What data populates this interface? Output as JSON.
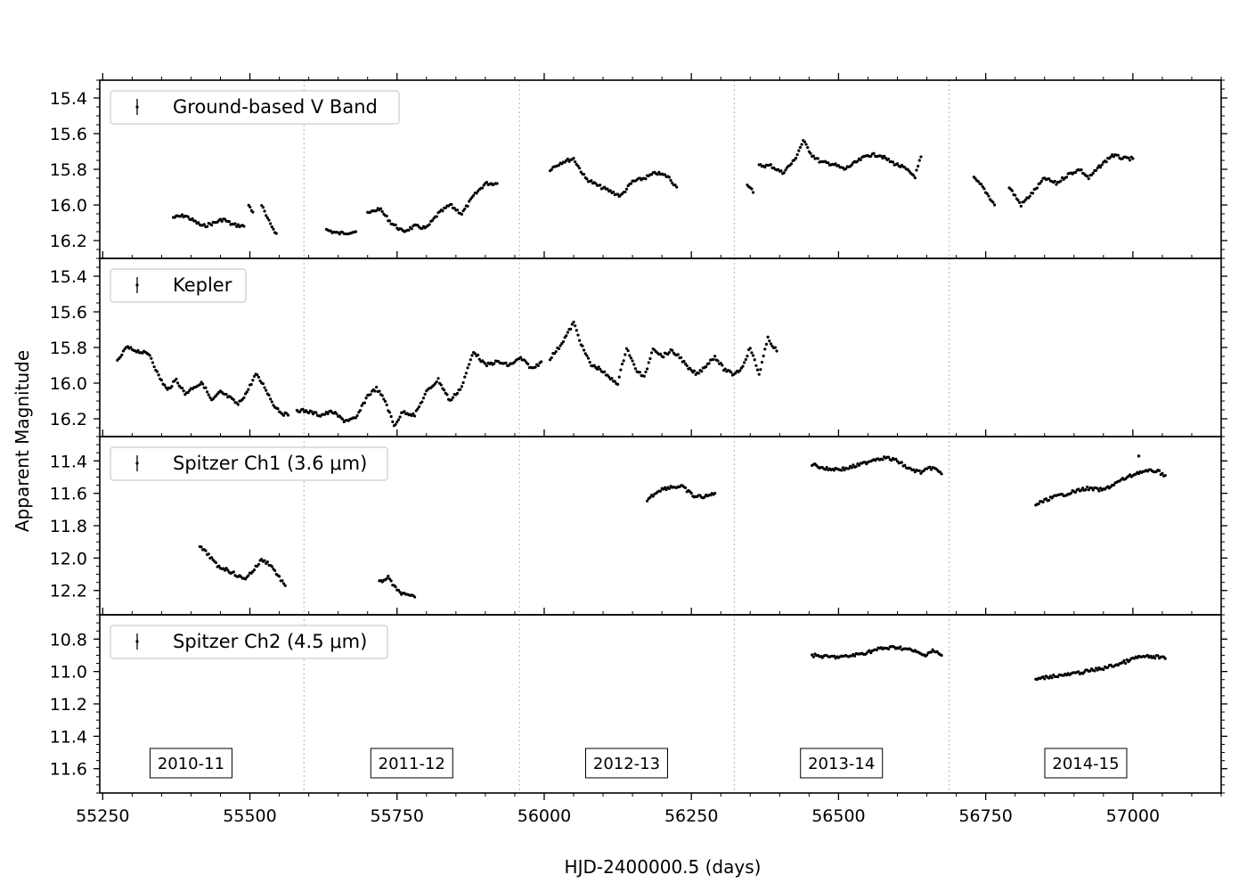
{
  "chart_data": {
    "type": "scatter",
    "xlabel": "HJD-2400000.5 (days)",
    "ylabel": "Apparent Magnitude",
    "xlim": [
      55245,
      57150
    ],
    "x_ticks": [
      55250,
      55500,
      55750,
      56000,
      56250,
      56500,
      56750,
      57000
    ],
    "season_boundaries": [
      55592,
      55958,
      56323,
      56688
    ],
    "seasons": [
      {
        "label": "2010-11",
        "x": 55400
      },
      {
        "label": "2011-12",
        "x": 55775
      },
      {
        "label": "2012-13",
        "x": 56140
      },
      {
        "label": "2013-14",
        "x": 56505
      },
      {
        "label": "2014-15",
        "x": 56920
      }
    ],
    "panels": [
      {
        "legend": "Ground-based V Band",
        "ylim": [
          16.3,
          15.3
        ],
        "y_ticks": [
          15.4,
          15.6,
          15.8,
          16.0,
          16.2
        ],
        "y_tick_labels": [
          "15.4",
          "15.6",
          "15.8",
          "16.0",
          "16.2"
        ],
        "segments": [
          {
            "x": [
              55370,
              55390,
              55400,
              55420,
              55440,
              55455,
              55470,
              55490
            ],
            "y": [
              16.07,
              16.06,
              16.08,
              16.12,
              16.1,
              16.08,
              16.11,
              16.12
            ]
          },
          {
            "x": [
              55498,
              55505
            ],
            "y": [
              16.0,
              16.04
            ]
          },
          {
            "x": [
              55520,
              55530,
              55545
            ],
            "y": [
              16.0,
              16.08,
              16.16
            ]
          },
          {
            "x": [
              55630,
              55650,
              55680
            ],
            "y": [
              16.14,
              16.16,
              16.15
            ]
          },
          {
            "x": [
              55700,
              55720,
              55740,
              55760,
              55780,
              55800,
              55820,
              55840,
              55860,
              55880,
              55900,
              55920
            ],
            "y": [
              16.05,
              16.02,
              16.1,
              16.15,
              16.12,
              16.13,
              16.05,
              16.0,
              16.05,
              15.95,
              15.88,
              15.88
            ]
          },
          {
            "x": [
              56010,
              56030,
              56050,
              56070,
              56090,
              56110,
              56130,
              56150,
              56170,
              56190,
              56210,
              56225
            ],
            "y": [
              15.8,
              15.76,
              15.74,
              15.85,
              15.89,
              15.92,
              15.95,
              15.87,
              15.85,
              15.82,
              15.84,
              15.9
            ]
          },
          {
            "x": [
              56345,
              56355
            ],
            "y": [
              15.88,
              15.93
            ]
          },
          {
            "x": [
              56365,
              56385,
              56405,
              56425,
              56440,
              56455,
              56470,
              56490,
              56510,
              56530,
              56550,
              56570,
              56590,
              56610,
              56630,
              56640
            ],
            "y": [
              15.78,
              15.78,
              15.82,
              15.75,
              15.64,
              15.72,
              15.76,
              15.77,
              15.8,
              15.76,
              15.72,
              15.72,
              15.76,
              15.79,
              15.84,
              15.73
            ]
          },
          {
            "x": [
              56730,
              56745,
              56765
            ],
            "y": [
              15.85,
              15.9,
              16.0
            ]
          },
          {
            "x": [
              56790,
              56810,
              56830,
              56850,
              56870,
              56890,
              56910,
              56925,
              56945,
              56965,
              56985,
              57000
            ],
            "y": [
              15.9,
              16.0,
              15.93,
              15.85,
              15.88,
              15.83,
              15.8,
              15.85,
              15.78,
              15.72,
              15.74,
              15.74
            ]
          }
        ]
      },
      {
        "legend": "Kepler",
        "ylim": [
          16.3,
          15.3
        ],
        "y_ticks": [
          15.4,
          15.6,
          15.8,
          16.0,
          16.2
        ],
        "y_tick_labels": [
          "15.4",
          "15.6",
          "15.8",
          "16.0",
          "16.2"
        ],
        "segments": [
          {
            "x": [
              55275,
              55290,
              55310,
              55330,
              55345,
              55360,
              55375,
              55390,
              55405,
              55420,
              55435,
              55450,
              55465,
              55480,
              55495,
              55510,
              55525,
              55540,
              55555,
              55565
            ],
            "y": [
              15.88,
              15.8,
              15.82,
              15.84,
              15.96,
              16.04,
              15.98,
              16.06,
              16.02,
              16.0,
              16.1,
              16.05,
              16.08,
              16.12,
              16.05,
              15.95,
              16.02,
              16.12,
              16.17,
              16.18
            ]
          },
          {
            "x": [
              55580,
              55600,
              55620,
              55640,
              55660,
              55680,
              55700,
              55715,
              55730,
              55745,
              55760,
              55780,
              55800,
              55820,
              55840,
              55860,
              55880,
              55900,
              55920,
              55940,
              55960,
              55980,
              55995
            ],
            "y": [
              16.15,
              16.16,
              16.18,
              16.16,
              16.21,
              16.2,
              16.07,
              16.03,
              16.1,
              16.24,
              16.16,
              16.18,
              16.05,
              15.98,
              16.1,
              16.02,
              15.82,
              15.9,
              15.88,
              15.9,
              15.86,
              15.92,
              15.88
            ]
          },
          {
            "x": [
              56010,
              56025,
              56040,
              56050,
              56065,
              56080,
              56095,
              56110,
              56125,
              56140,
              56155,
              56170,
              56185,
              56200,
              56215,
              56230,
              56245,
              56260,
              56275,
              56290,
              56305,
              56320,
              56335,
              56350,
              56365,
              56380,
              56395
            ],
            "y": [
              15.86,
              15.8,
              15.72,
              15.66,
              15.8,
              15.9,
              15.92,
              15.97,
              16.0,
              15.8,
              15.92,
              15.97,
              15.8,
              15.85,
              15.82,
              15.85,
              15.92,
              15.95,
              15.9,
              15.85,
              15.92,
              15.95,
              15.92,
              15.8,
              15.95,
              15.75,
              15.82
            ]
          }
        ]
      },
      {
        "legend": "Spitzer Ch1 (3.6 μm)",
        "ylim": [
          12.35,
          11.25
        ],
        "y_ticks": [
          11.4,
          11.6,
          11.8,
          12.0,
          12.2
        ],
        "y_tick_labels": [
          "11.4",
          "11.6",
          "11.8",
          "12.0",
          "12.2"
        ],
        "segments": [
          {
            "x": [
              55415,
              55430,
              55445,
              55460,
              55475,
              55490,
              55505,
              55520,
              55535,
              55550,
              55560
            ],
            "y": [
              11.93,
              11.98,
              12.05,
              12.07,
              12.1,
              12.13,
              12.08,
              12.01,
              12.04,
              12.12,
              12.17
            ]
          },
          {
            "x": [
              55720,
              55735,
              55750,
              55765,
              55780
            ],
            "y": [
              12.15,
              12.12,
              12.2,
              12.23,
              12.24
            ]
          },
          {
            "x": [
              56175,
              56195,
              56215,
              56235,
              56255,
              56275,
              56290
            ],
            "y": [
              11.64,
              11.58,
              11.56,
              11.56,
              11.62,
              11.62,
              11.6
            ]
          },
          {
            "x": [
              56455,
              56480,
              56510,
              56540,
              56560,
              56580,
              56600,
              56620,
              56640,
              56660,
              56675
            ],
            "y": [
              11.42,
              11.45,
              11.45,
              11.42,
              11.39,
              11.38,
              11.4,
              11.45,
              11.47,
              11.44,
              11.48
            ]
          },
          {
            "x": [
              56835,
              56860,
              56890,
              56920,
              56950,
              56980,
              57010,
              57040,
              57055
            ],
            "y": [
              11.67,
              11.63,
              11.6,
              11.57,
              11.58,
              11.52,
              11.47,
              11.46,
              11.49
            ]
          },
          {
            "x": [
              57010
            ],
            "y": [
              11.37
            ]
          }
        ]
      },
      {
        "legend": "Spitzer Ch2 (4.5 μm)",
        "ylim": [
          11.75,
          10.65
        ],
        "y_ticks": [
          10.8,
          11.0,
          11.2,
          11.4,
          11.6
        ],
        "y_tick_labels": [
          "10.8",
          "11.0",
          "11.2",
          "11.4",
          "11.6"
        ],
        "segments": [
          {
            "x": [
              56455,
              56480,
              56510,
              56540,
              56570,
              56600,
              56625,
              56645,
              56660,
              56675
            ],
            "y": [
              10.9,
              10.91,
              10.91,
              10.89,
              10.86,
              10.85,
              10.87,
              10.9,
              10.87,
              10.9
            ]
          },
          {
            "x": [
              56835,
              56860,
              56890,
              56920,
              56950,
              56980,
              57010,
              57040,
              57055
            ],
            "y": [
              11.05,
              11.03,
              11.02,
              11.0,
              10.98,
              10.95,
              10.91,
              10.91,
              10.92
            ]
          }
        ]
      }
    ]
  }
}
